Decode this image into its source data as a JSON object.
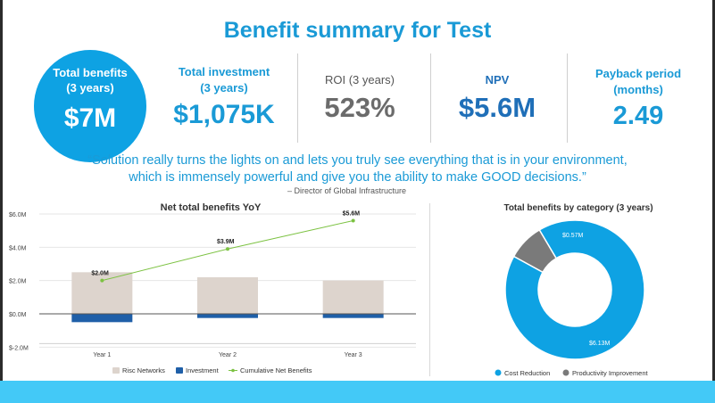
{
  "title": "Benefit summary for Test",
  "kpis": {
    "total_benefits_label_1": "Total benefits",
    "total_benefits_label_2": "(3 years)",
    "total_benefits_value": "$7M",
    "total_investment_label_1": "Total investment",
    "total_investment_label_2": "(3 years)",
    "total_investment_value": "$1,075K",
    "roi_label": "ROI (3 years)",
    "roi_value": "523%",
    "npv_label": "NPV",
    "npv_value": "$5.6M",
    "payback_label_1": "Payback period",
    "payback_label_2": "(months)",
    "payback_value": "2.49"
  },
  "quote": {
    "line1": "“Solution really turns the lights on and lets you truly see everything that is in your environment,",
    "line2": "which is immensely powerful and give you the ability to make GOOD decisions.”",
    "attribution": "– Director of Global Infrastructure"
  },
  "colors": {
    "accent": "#1a9ad6",
    "risc": "#ddd4cd",
    "investment": "#1f5fa8",
    "cumulative": "#7cc242",
    "cost_reduction": "#0ea2e3",
    "productivity": "#7a7a7a"
  },
  "chart_data": [
    {
      "type": "bar",
      "title": "Net total benefits YoY",
      "categories": [
        "Year 1",
        "Year 2",
        "Year 3"
      ],
      "ylim": [
        -2,
        6
      ],
      "y_ticks": [
        -2,
        0,
        2,
        4,
        6
      ],
      "y_tick_labels": [
        "$-2.0M",
        "$0.0M",
        "$2.0M",
        "$4.0M",
        "$6.0M"
      ],
      "grid": true,
      "legend": "bottom",
      "series": [
        {
          "name": "Risc Networks",
          "type": "bar",
          "values": [
            2.5,
            2.2,
            2.0
          ]
        },
        {
          "name": "Investment",
          "type": "bar",
          "values": [
            -0.5,
            -0.25,
            -0.25
          ]
        },
        {
          "name": "Cumulative Net Benefits",
          "type": "line",
          "values": [
            2.0,
            3.9,
            5.6
          ],
          "labels": [
            "$2.0M",
            "$3.9M",
            "$5.6M"
          ]
        }
      ]
    },
    {
      "type": "pie",
      "title": "Total benefits by category (3 years)",
      "donut": true,
      "legend": "bottom",
      "slices": [
        {
          "name": "Cost Reduction",
          "value": 6.13,
          "label": "$6.13M"
        },
        {
          "name": "Productivity Improvement",
          "value": 0.57,
          "label": "$0.57M"
        }
      ]
    }
  ]
}
